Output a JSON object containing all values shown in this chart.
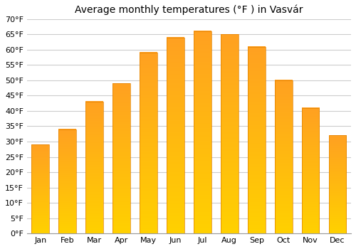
{
  "title": "Average monthly temperatures (°F ) in Vasvár",
  "months": [
    "Jan",
    "Feb",
    "Mar",
    "Apr",
    "May",
    "Jun",
    "Jul",
    "Aug",
    "Sep",
    "Oct",
    "Nov",
    "Dec"
  ],
  "values": [
    29,
    34,
    43,
    49,
    59,
    64,
    66,
    65,
    61,
    50,
    41,
    32
  ],
  "ylim": [
    0,
    70
  ],
  "ytick_step": 5,
  "bar_color_bottom": "#FFD000",
  "bar_color_top": "#FFA020",
  "bar_edge_color": "#E08000",
  "background_color": "#ffffff",
  "grid_color": "#cccccc",
  "title_fontsize": 10,
  "tick_fontsize": 8
}
